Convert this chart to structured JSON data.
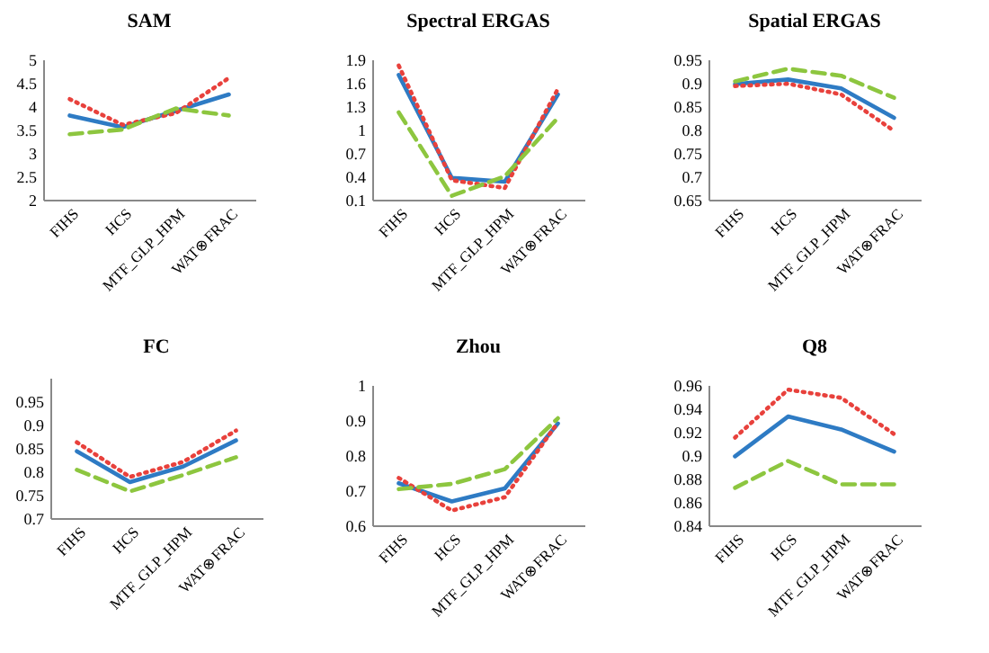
{
  "chart_data": [
    {
      "type": "line",
      "title": "SAM",
      "categories": [
        "FIHS",
        "HCS",
        "MTF_GLP_HPM",
        "WAT⊗FRAC"
      ],
      "ylim": [
        2,
        5
      ],
      "yticks": [
        2,
        2.5,
        3,
        3.5,
        4,
        4.5,
        5
      ],
      "series": [
        {
          "color": "#2e7bc4",
          "line_style": "solid",
          "values": [
            3.8,
            3.55,
            3.9,
            4.25
          ]
        },
        {
          "color": "#e8413c",
          "line_style": "dotted",
          "values": [
            4.15,
            3.6,
            3.85,
            4.6
          ]
        },
        {
          "color": "#8dc63f",
          "line_style": "dashed",
          "values": [
            3.4,
            3.5,
            3.95,
            3.8
          ]
        }
      ]
    },
    {
      "type": "line",
      "title": "Spectral ERGAS",
      "categories": [
        "FIHS",
        "HCS",
        "MTF_GLP_HPM",
        "WAT⊗FRAC"
      ],
      "ylim": [
        0.1,
        1.9
      ],
      "yticks": [
        0.1,
        0.4,
        0.7,
        1,
        1.3,
        1.6,
        1.9
      ],
      "series": [
        {
          "color": "#2e7bc4",
          "line_style": "solid",
          "values": [
            1.7,
            0.38,
            0.33,
            1.45
          ]
        },
        {
          "color": "#e8413c",
          "line_style": "dotted",
          "values": [
            1.82,
            0.35,
            0.25,
            1.52
          ]
        },
        {
          "color": "#8dc63f",
          "line_style": "dashed",
          "values": [
            1.22,
            0.15,
            0.4,
            1.15
          ]
        }
      ]
    },
    {
      "type": "line",
      "title": "Spatial ERGAS",
      "categories": [
        "FIHS",
        "HCS",
        "MTF_GLP_HPM",
        "WAT⊗FRAC"
      ],
      "ylim": [
        0.65,
        0.95
      ],
      "yticks": [
        0.65,
        0.7,
        0.75,
        0.8,
        0.85,
        0.9,
        0.95
      ],
      "series": [
        {
          "color": "#2e7bc4",
          "line_style": "solid",
          "values": [
            0.897,
            0.907,
            0.888,
            0.825
          ]
        },
        {
          "color": "#e8413c",
          "line_style": "dotted",
          "values": [
            0.893,
            0.898,
            0.875,
            0.797
          ]
        },
        {
          "color": "#8dc63f",
          "line_style": "dashed",
          "values": [
            0.903,
            0.93,
            0.915,
            0.868
          ]
        }
      ]
    },
    {
      "type": "line",
      "title": "FC",
      "categories": [
        "FIHS",
        "HCS",
        "MTF_GLP_HPM",
        "WAT⊗FRAC"
      ],
      "ylim": [
        0.7,
        1
      ],
      "yticks": [
        0.7,
        0.75,
        0.8,
        0.85,
        0.9,
        0.95
      ],
      "series": [
        {
          "color": "#2e7bc4",
          "line_style": "solid",
          "values": [
            0.843,
            0.777,
            0.81,
            0.866
          ]
        },
        {
          "color": "#e8413c",
          "line_style": "dotted",
          "values": [
            0.862,
            0.788,
            0.82,
            0.887
          ]
        },
        {
          "color": "#8dc63f",
          "line_style": "dashed",
          "values": [
            0.803,
            0.757,
            0.792,
            0.83
          ]
        }
      ]
    },
    {
      "type": "line",
      "title": "Zhou",
      "categories": [
        "FIHS",
        "HCS",
        "MTF_GLP_HPM",
        "WAT⊗FRAC"
      ],
      "ylim": [
        0.6,
        1
      ],
      "yticks": [
        0.6,
        0.7,
        0.8,
        0.9,
        1
      ],
      "series": [
        {
          "color": "#2e7bc4",
          "line_style": "solid",
          "values": [
            0.72,
            0.668,
            0.705,
            0.89
          ]
        },
        {
          "color": "#e8413c",
          "line_style": "dotted",
          "values": [
            0.735,
            0.642,
            0.68,
            0.893
          ]
        },
        {
          "color": "#8dc63f",
          "line_style": "dashed",
          "values": [
            0.703,
            0.718,
            0.76,
            0.905
          ]
        }
      ]
    },
    {
      "type": "line",
      "title": "Q8",
      "categories": [
        "FIHS",
        "HCS",
        "MTF_GLP_HPM",
        "WAT⊗FRAC"
      ],
      "ylim": [
        0.84,
        0.96
      ],
      "yticks": [
        0.84,
        0.86,
        0.88,
        0.9,
        0.92,
        0.94,
        0.96
      ],
      "series": [
        {
          "color": "#2e7bc4",
          "line_style": "solid",
          "values": [
            0.899,
            0.933,
            0.922,
            0.903
          ]
        },
        {
          "color": "#e8413c",
          "line_style": "dotted",
          "values": [
            0.915,
            0.956,
            0.949,
            0.918
          ]
        },
        {
          "color": "#8dc63f",
          "line_style": "dashed",
          "values": [
            0.872,
            0.895,
            0.875,
            0.875
          ]
        }
      ]
    }
  ]
}
